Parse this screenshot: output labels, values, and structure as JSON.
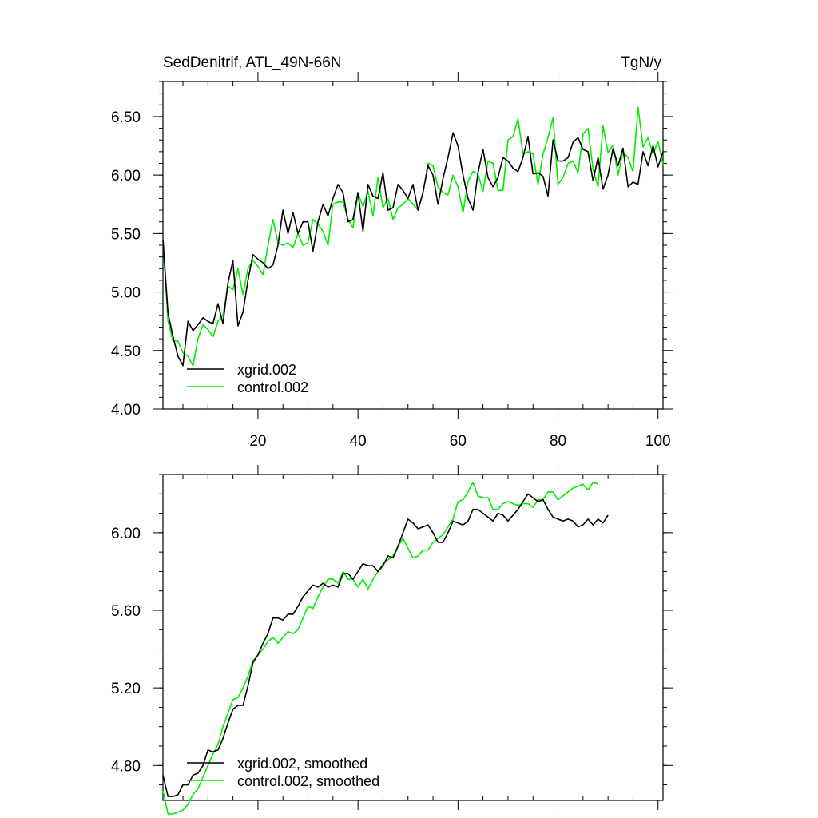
{
  "chart_data": [
    {
      "type": "line",
      "title": "SedDenitrif, ATL_49N-66N",
      "units": "TgN/y",
      "xlim": [
        1,
        101
      ],
      "ylim": [
        4.0,
        6.8
      ],
      "x_ticks": [
        20,
        40,
        60,
        80,
        100
      ],
      "y_ticks": [
        4.0,
        4.5,
        5.0,
        5.5,
        6.0,
        6.5
      ],
      "y_tick_labels": [
        "4.00",
        "4.50",
        "5.00",
        "5.50",
        "6.00",
        "6.50"
      ],
      "series": [
        {
          "name": "xgrid.002",
          "color": "#000000",
          "values": [
            5.45,
            4.82,
            4.62,
            4.45,
            4.37,
            4.75,
            4.67,
            4.72,
            4.78,
            4.75,
            4.73,
            4.9,
            4.73,
            5.08,
            5.27,
            4.71,
            4.83,
            5.1,
            5.32,
            5.28,
            5.25,
            5.2,
            5.23,
            5.4,
            5.7,
            5.5,
            5.68,
            5.5,
            5.6,
            5.6,
            5.35,
            5.6,
            5.75,
            5.65,
            5.8,
            5.92,
            5.85,
            5.6,
            5.62,
            5.85,
            5.52,
            5.92,
            5.82,
            5.8,
            6.02,
            5.7,
            5.72,
            5.92,
            5.87,
            5.8,
            5.92,
            5.7,
            5.85,
            6.08,
            6.0,
            5.75,
            5.97,
            6.15,
            6.36,
            6.25,
            6.0,
            5.8,
            5.7,
            6.02,
            6.22,
            5.98,
            5.9,
            5.98,
            6.15,
            6.12,
            6.06,
            6.03,
            6.15,
            6.33,
            6.01,
            6.02,
            5.99,
            5.82,
            6.3,
            6.12,
            6.12,
            6.15,
            6.28,
            6.32,
            6.22,
            6.2,
            5.95,
            6.15,
            5.88,
            6.0,
            6.23,
            6.08,
            6.23,
            5.9,
            5.94,
            5.92,
            6.2,
            6.08,
            6.25,
            6.07,
            6.2
          ]
        },
        {
          "name": "control.002",
          "color": "#00ee00",
          "values": [
            5.45,
            4.75,
            4.58,
            4.58,
            4.48,
            4.45,
            4.37,
            4.6,
            4.72,
            4.68,
            4.62,
            4.75,
            4.8,
            5.05,
            5.02,
            5.2,
            4.98,
            5.2,
            5.27,
            5.22,
            5.15,
            5.4,
            5.62,
            5.42,
            5.4,
            5.42,
            5.38,
            5.5,
            5.4,
            5.42,
            5.62,
            5.58,
            5.52,
            5.4,
            5.75,
            5.77,
            5.77,
            5.62,
            5.55,
            5.85,
            5.73,
            5.86,
            5.65,
            5.98,
            5.72,
            5.8,
            5.62,
            5.72,
            5.75,
            5.8,
            5.75,
            5.7,
            5.85,
            6.1,
            6.08,
            5.9,
            5.85,
            5.83,
            6.0,
            5.9,
            5.68,
            5.95,
            6.03,
            6.01,
            5.86,
            6.12,
            6.1,
            5.87,
            5.87,
            6.3,
            6.33,
            6.48,
            6.18,
            6.2,
            6.18,
            5.92,
            6.18,
            6.32,
            6.49,
            5.92,
            5.98,
            6.1,
            6.12,
            6.02,
            6.35,
            6.4,
            6.05,
            5.9,
            6.42,
            6.19,
            6.26,
            6.0,
            6.2,
            6.15,
            6.03,
            6.58,
            6.24,
            6.32,
            6.18,
            6.29,
            6.09
          ]
        }
      ],
      "legend": [
        "xgrid.002",
        "control.002"
      ],
      "legend_position": "bottom-left",
      "grid": false
    },
    {
      "type": "line",
      "xlim": [
        1,
        101
      ],
      "ylim": [
        4.62,
        6.3
      ],
      "x_ticks": [
        20,
        40,
        60,
        80,
        100
      ],
      "y_ticks": [
        4.8,
        5.2,
        5.6,
        6.0
      ],
      "y_tick_labels": [
        "4.80",
        "5.20",
        "5.60",
        "6.00"
      ],
      "series": [
        {
          "name": "xgrid.002, smoothed",
          "color": "#000000",
          "values": [
            4.75,
            4.64,
            4.64,
            4.65,
            4.7,
            4.7,
            4.75,
            4.76,
            4.8,
            4.88,
            4.87,
            4.88,
            4.94,
            5.02,
            5.09,
            5.11,
            5.11,
            5.21,
            5.33,
            5.37,
            5.43,
            5.48,
            5.56,
            5.56,
            5.55,
            5.58,
            5.58,
            5.62,
            5.67,
            5.7,
            5.73,
            5.72,
            5.74,
            5.72,
            5.73,
            5.72,
            5.79,
            5.79,
            5.76,
            5.8,
            5.84,
            5.83,
            5.83,
            5.8,
            5.83,
            5.88,
            5.87,
            5.93,
            6.0,
            6.07,
            6.05,
            6.02,
            6.03,
            6.04,
            6.0,
            5.95,
            5.95,
            6.0,
            6.06,
            6.05,
            6.04,
            6.06,
            6.12,
            6.12,
            6.1,
            6.08,
            6.06,
            6.1,
            6.09,
            6.06,
            6.09,
            6.12,
            6.16,
            6.2,
            6.18,
            6.16,
            6.17,
            6.12,
            6.08,
            6.07,
            6.06,
            6.07,
            6.06,
            6.03,
            6.04,
            6.07,
            6.04,
            6.07,
            6.05,
            6.09
          ]
        },
        {
          "name": "control.002, smoothed",
          "color": "#00ee00",
          "values": [
            4.67,
            4.55,
            4.55,
            4.56,
            4.57,
            4.6,
            4.65,
            4.68,
            4.74,
            4.8,
            4.86,
            4.91,
            5.0,
            5.07,
            5.14,
            5.15,
            5.2,
            5.26,
            5.34,
            5.37,
            5.4,
            5.44,
            5.46,
            5.43,
            5.46,
            5.49,
            5.48,
            5.5,
            5.56,
            5.62,
            5.61,
            5.67,
            5.72,
            5.76,
            5.76,
            5.74,
            5.8,
            5.76,
            5.76,
            5.72,
            5.76,
            5.71,
            5.76,
            5.8,
            5.84,
            5.86,
            5.88,
            5.93,
            5.97,
            5.92,
            5.87,
            5.88,
            5.91,
            5.91,
            5.95,
            5.97,
            5.99,
            6.03,
            6.07,
            6.16,
            6.17,
            6.21,
            6.26,
            6.19,
            6.18,
            6.18,
            6.12,
            6.12,
            6.15,
            6.16,
            6.15,
            6.14,
            6.15,
            6.15,
            6.13,
            6.17,
            6.17,
            6.21,
            6.21,
            6.17,
            6.19,
            6.21,
            6.23,
            6.24,
            6.25,
            6.22,
            6.26,
            6.25
          ]
        }
      ],
      "legend": [
        "xgrid.002, smoothed",
        "control.002, smoothed"
      ],
      "legend_position": "bottom-left",
      "grid": false
    }
  ]
}
